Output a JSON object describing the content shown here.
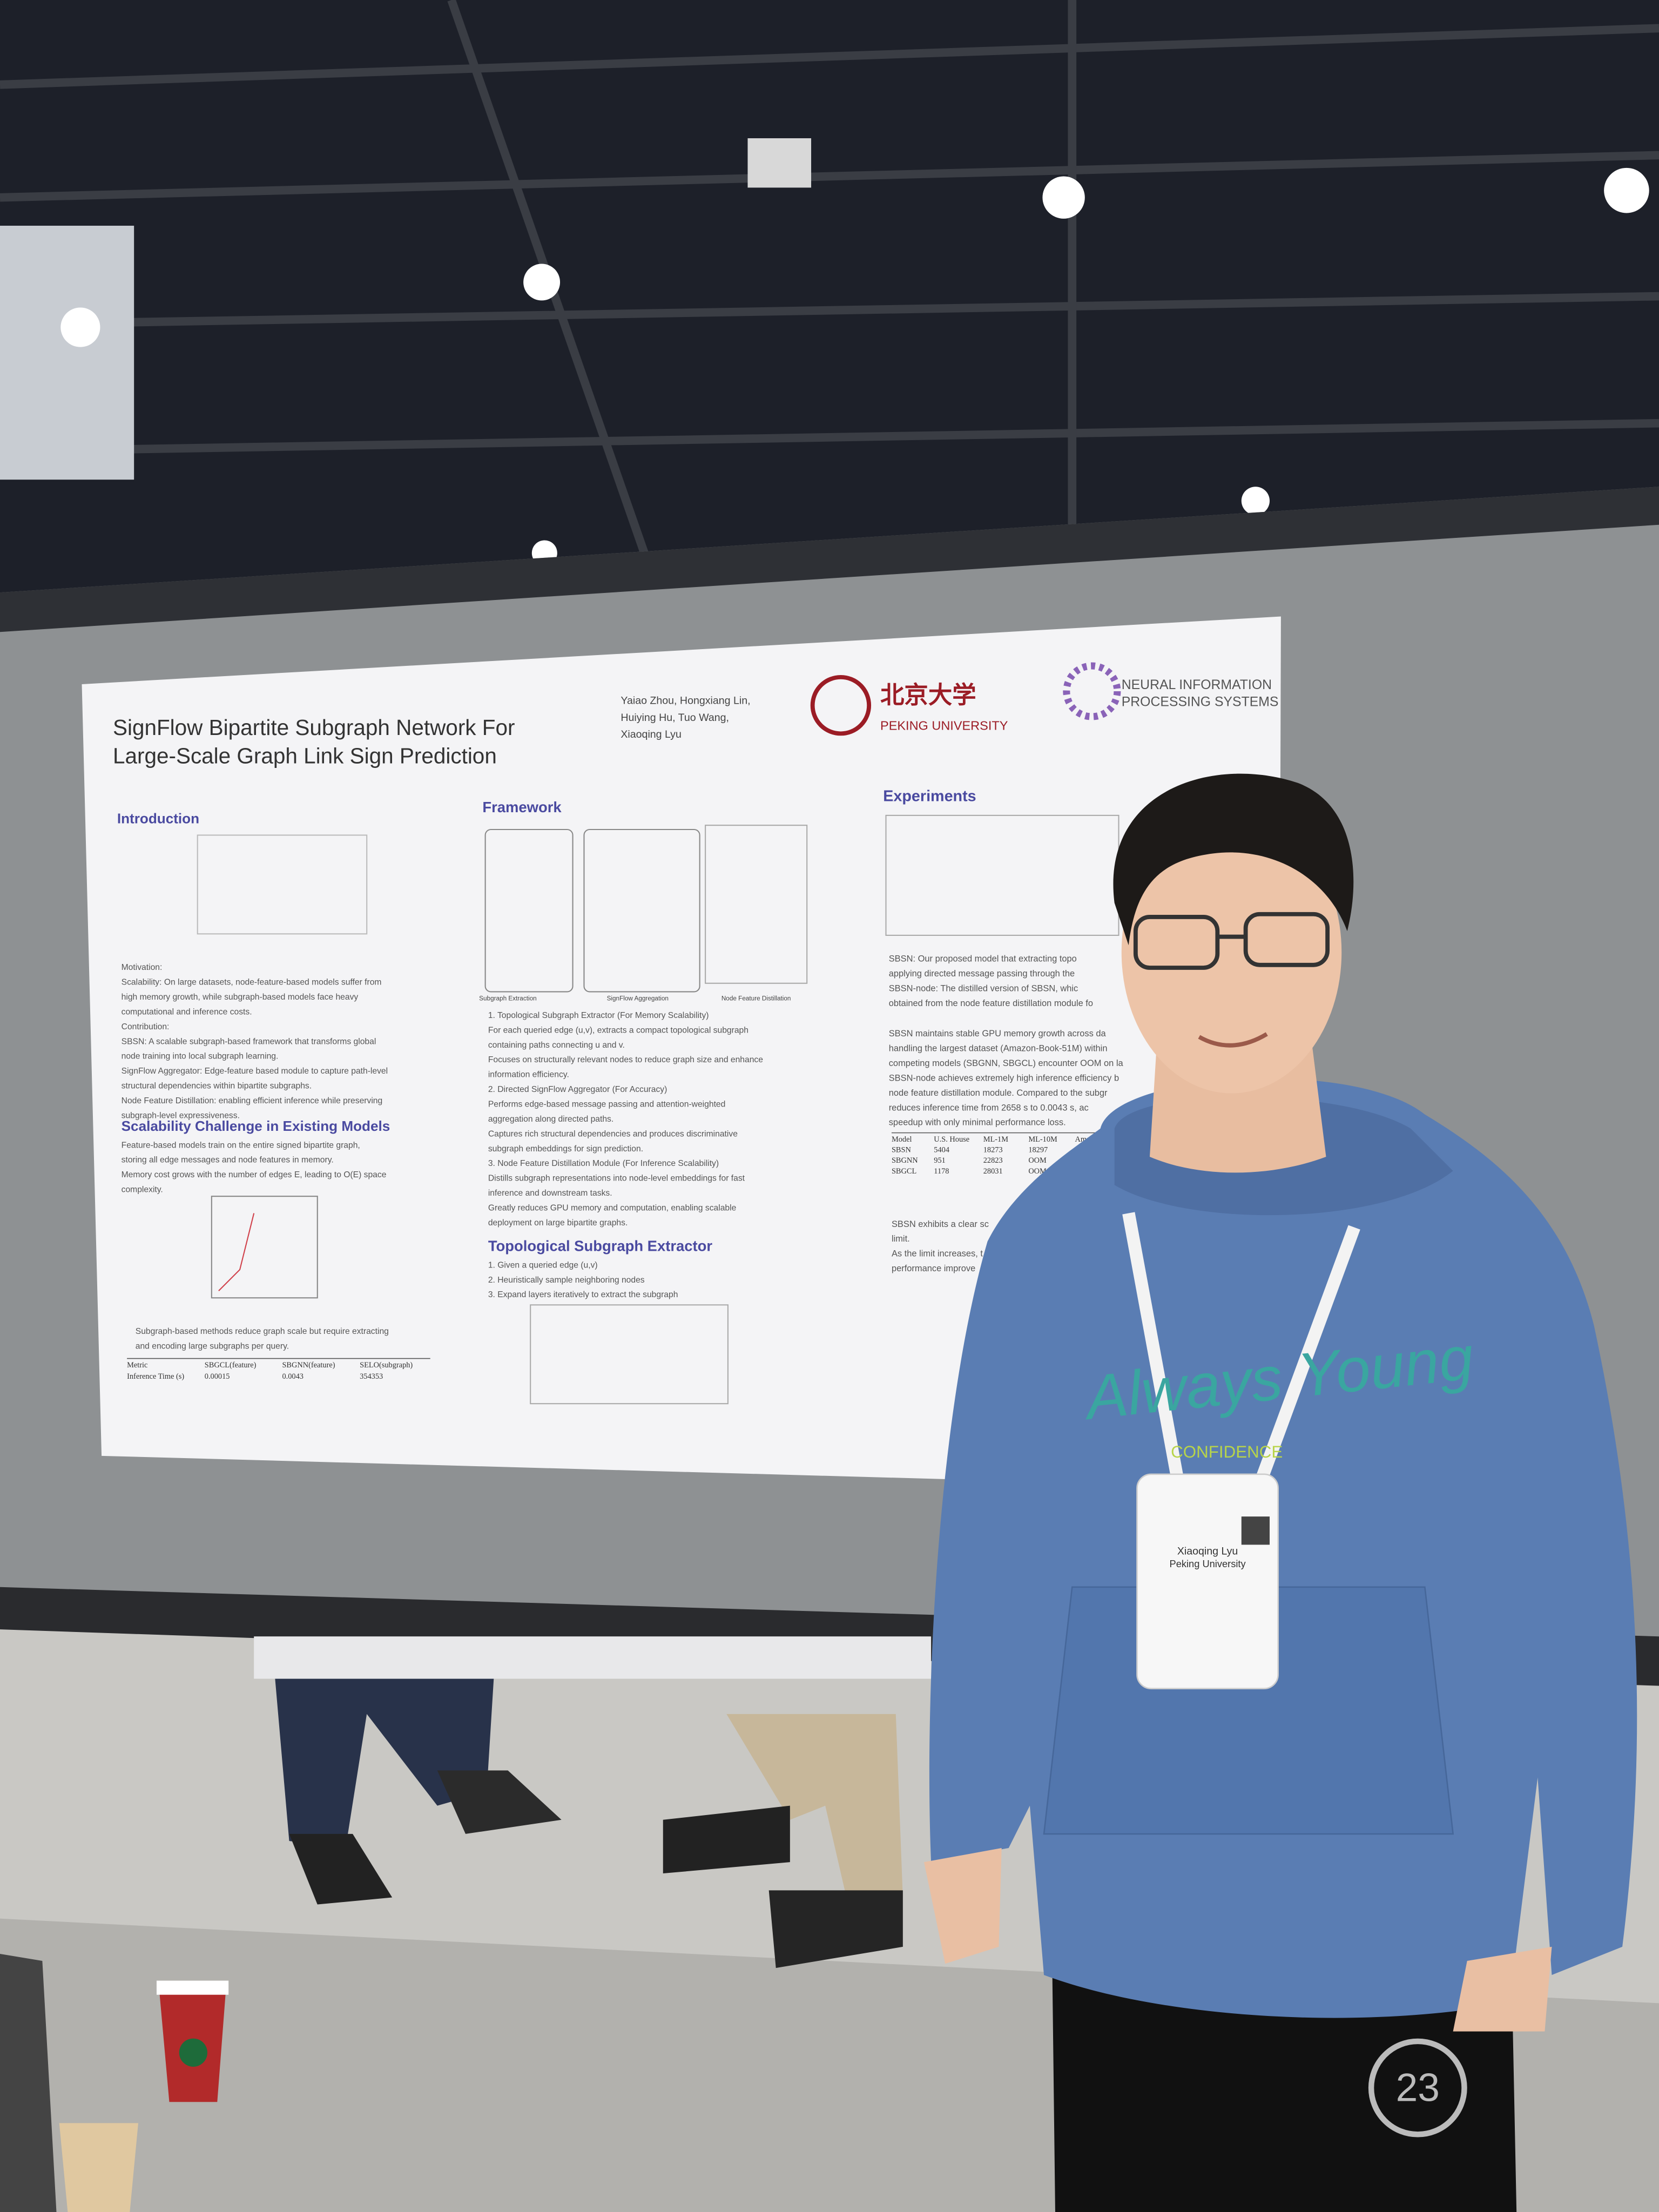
{
  "poster": {
    "title": [
      "SignFlow Bipartite Subgraph Network For",
      "Large-Scale Graph Link Sign Prediction"
    ],
    "authors": [
      "Yaiao Zhou, Hongxiang Lin,",
      "Huiying Hu, Tuo Wang,",
      "Xiaoqing Lyu"
    ],
    "logos": [
      "北京大学",
      "PEKING UNIVERSITY",
      "NEURAL INFORMATION",
      "PROCESSING SYSTEMS"
    ],
    "blocks": [
      {
        "heading": "Introduction",
        "lines": []
      },
      {
        "lines": [
          "Motivation:",
          "Scalability: On large datasets, node-feature-based models suffer from",
          "high memory growth, while subgraph-based models face heavy",
          "computational and inference costs.",
          "Contribution:",
          "SBSN: A scalable subgraph-based framework that transforms global",
          "node training into local subgraph learning.",
          "SignFlow Aggregator: Edge-feature based module to capture path-level",
          "structural dependencies within bipartite subgraphs.",
          "Node Feature Distillation: enabling efficient inference while preserving",
          "subgraph-level expressiveness."
        ]
      },
      {
        "heading": "Scalability Challenge in Existing Models",
        "lines": [
          "Feature-based models train on the entire signed bipartite graph,",
          "storing all edge messages and node features in memory.",
          "Memory cost grows with the number of edges E, leading to O(E) space",
          "complexity."
        ]
      },
      {
        "lines": [
          "Subgraph-based methods reduce graph scale but require extracting",
          "and encoding large subgraphs per query."
        ]
      },
      {
        "heading": "Framework",
        "lines": []
      },
      {
        "lines": [
          "1. Topological Subgraph Extractor (For Memory Scalability)",
          "For each queried edge (u,v), extracts a compact topological subgraph",
          "containing paths connecting u and v.",
          "Focuses on structurally relevant nodes to reduce graph size and enhance",
          "information efficiency.",
          "2. Directed SignFlow Aggregator (For Accuracy)",
          "Performs edge-based message passing and attention-weighted",
          "aggregation along directed paths.",
          "Captures rich structural dependencies and produces discriminative",
          "subgraph embeddings for sign prediction.",
          "3. Node Feature Distillation Module (For Inference Scalability)",
          "Distills subgraph representations into node-level embeddings for fast",
          "inference and downstream tasks.",
          "Greatly reduces GPU memory and computation, enabling scalable",
          "deployment on large bipartite graphs."
        ]
      },
      {
        "heading": "Topological Subgraph Extractor",
        "lines": [
          "1. Given a queried edge (u,v)",
          "2. Heuristically sample neighboring nodes",
          "3. Expand layers iteratively to extract the subgraph"
        ]
      },
      {
        "heading": "Experiments",
        "lines": []
      },
      {
        "lines": [
          "SBSN: Our proposed model that extracting topo",
          "applying directed message passing through the",
          "SBSN-node: The distilled version of SBSN, whic",
          "obtained from the node feature distillation module fo"
        ]
      },
      {
        "lines": [
          "SBSN maintains stable GPU memory growth across da",
          "handling the largest dataset (Amazon-Book-51M) within",
          "competing models (SBGNN, SBGCL) encounter OOM on la",
          "SBSN-node achieves extremely high inference efficiency b",
          "node feature distillation module. Compared to the subgr",
          "reduces inference time from 2658 s to 0.0043 s, ac",
          "speedup with only minimal performance loss."
        ]
      },
      {
        "lines": [
          "SBSN exhibits a clear sc",
          "limit.",
          "As the limit increases, t",
          "performance improve"
        ]
      }
    ],
    "captions": [
      "Subgraph Extraction",
      "SignFlow Aggregation",
      "Node Feature Distillation"
    ],
    "tables": [
      {
        "rows": [
          [
            "Metric",
            "SBGCL(feature)",
            "SBGNN(feature)",
            "SELO(subgraph)"
          ],
          [
            "Inference Time (s)",
            "0.00015",
            "0.0043",
            "354353"
          ]
        ]
      },
      {
        "rows": [
          [
            "Model",
            "U.S. House",
            "ML-1M",
            "ML-10M",
            "Amazon"
          ],
          [
            "SBSN",
            "5404",
            "18273",
            "18297"
          ],
          [
            "SBGNN",
            "951",
            "22823",
            "OOM"
          ],
          [
            "SBGCL",
            "1178",
            "28031",
            "OOM"
          ]
        ]
      }
    ]
  },
  "badge": {
    "name": "Xiaoqing Lyu",
    "affiliation": "Peking University"
  },
  "hoodie": {
    "print": "Always Young",
    "tagline": "CONFIDENCE"
  },
  "pants": {
    "number": "23"
  }
}
